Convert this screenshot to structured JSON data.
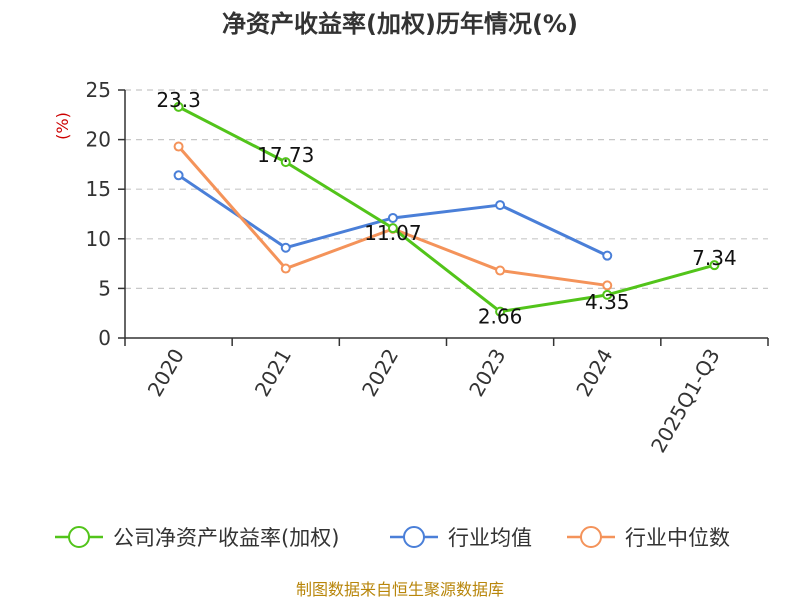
{
  "chart_data": {
    "type": "line",
    "title": "净资产收益率(加权)历年情况(%)",
    "ylabel": "(%)",
    "categories": [
      "2020",
      "2021",
      "2022",
      "2023",
      "2024",
      "2025Q1-Q3"
    ],
    "ylim": [
      0,
      25
    ],
    "yticks": [
      0,
      5,
      10,
      15,
      20,
      25
    ],
    "grid": true,
    "legend_position": "bottom",
    "series": [
      {
        "name": "公司净资产收益率(加权)",
        "color": "#52c41a",
        "values": [
          23.3,
          17.73,
          11.07,
          2.66,
          4.35,
          7.34
        ],
        "labels": [
          "23.3",
          "17.73",
          "11.07",
          "2.66",
          "4.35",
          "7.34"
        ]
      },
      {
        "name": "行业均值",
        "color": "#4a7fd8",
        "values": [
          16.4,
          9.1,
          12.1,
          13.4,
          8.3,
          null
        ]
      },
      {
        "name": "行业中位数",
        "color": "#f4935a",
        "values": [
          19.3,
          7.0,
          11.0,
          6.8,
          5.3,
          null
        ]
      }
    ]
  },
  "footer": {
    "source": "制图数据来自恒生聚源数据库"
  }
}
